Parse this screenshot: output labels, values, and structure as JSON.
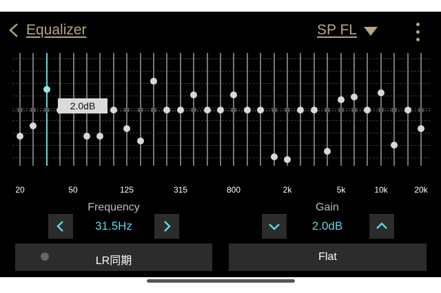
{
  "header": {
    "title": "Equalizer",
    "channel": "SP FL"
  },
  "eq": {
    "bands": [
      {
        "db": -2.5
      },
      {
        "db": -1.5
      },
      {
        "db": 2.0
      },
      {
        "db": 0.0
      },
      {
        "db": 0.0
      },
      {
        "db": -2.5
      },
      {
        "db": -2.5
      },
      {
        "db": 0.0
      },
      {
        "db": -1.8
      },
      {
        "db": -3.0
      },
      {
        "db": 2.8
      },
      {
        "db": 0.0
      },
      {
        "db": 0.0
      },
      {
        "db": 1.5
      },
      {
        "db": 0.0
      },
      {
        "db": 0.0
      },
      {
        "db": 1.5
      },
      {
        "db": 0.0
      },
      {
        "db": 0.0
      },
      {
        "db": -4.5
      },
      {
        "db": -4.8
      },
      {
        "db": 0.0
      },
      {
        "db": 0.0
      },
      {
        "db": -4.0
      },
      {
        "db": 1.0
      },
      {
        "db": 1.3
      },
      {
        "db": 0.0
      },
      {
        "db": 1.7
      },
      {
        "db": -3.4
      },
      {
        "db": 0.0
      },
      {
        "db": -1.8
      }
    ],
    "selected_index": 2,
    "tooltip": "2.0dB",
    "freq_labels": [
      "20",
      "50",
      "125",
      "315",
      "800",
      "2k",
      "5k",
      "10k",
      "20k"
    ]
  },
  "frequency": {
    "label": "Frequency",
    "value": "31.5Hz"
  },
  "gain": {
    "label": "Gain",
    "value": "2.0dB"
  },
  "buttons": {
    "lr": "LR同期",
    "flat": "Flat"
  }
}
